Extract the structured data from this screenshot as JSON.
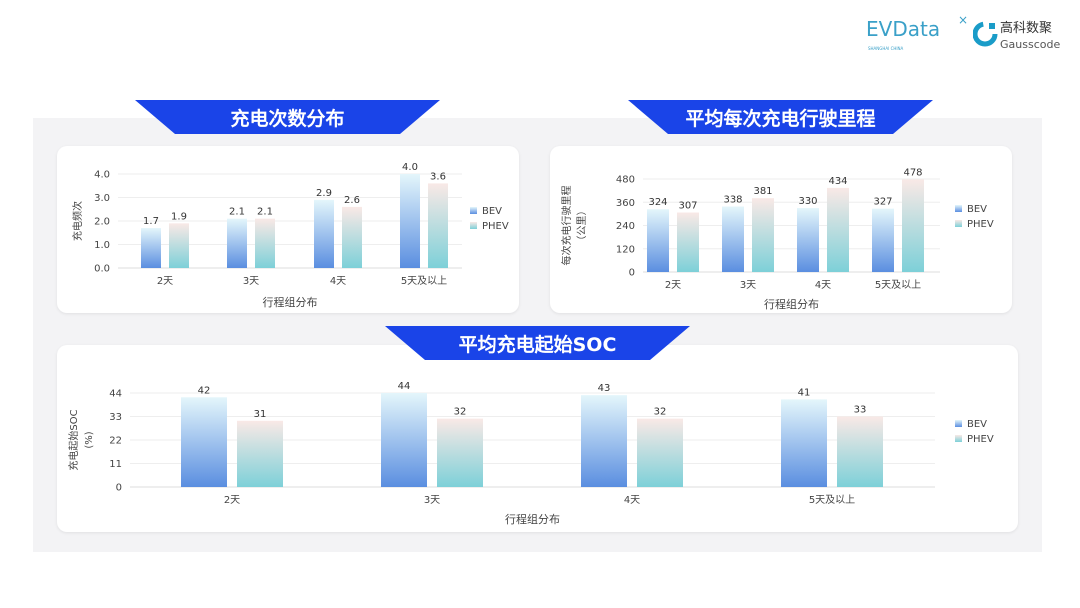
{
  "logos": {
    "evdata": "EVData",
    "evdata_sub": "SHANGHAI CHINA",
    "gauss_cn": "高科数聚",
    "gauss_en": "Gausscode"
  },
  "banners": [
    "充电次数分布",
    "平均每次充电行驶里程",
    "平均充电起始SOC"
  ],
  "colors": {
    "banner": "#1a44e8",
    "bev_top": "#e4f6fb",
    "bev_bottom": "#5a8ee0",
    "phev_top": "#f9e9e6",
    "phev_bottom": "#7dd0d8"
  },
  "chart_data": [
    {
      "type": "bar",
      "title": "充电次数分布",
      "categories": [
        "2天",
        "3天",
        "4天",
        "5天及以上"
      ],
      "xlabel": "行程组分布",
      "ylabel": "充电频次",
      "ylim": [
        0,
        4.0
      ],
      "yticks": [
        "0.0",
        "1.0",
        "2.0",
        "3.0",
        "4.0"
      ],
      "grid": true,
      "legend": "right",
      "series": [
        {
          "name": "BEV",
          "values": [
            1.7,
            2.1,
            2.9,
            4.0
          ],
          "labels": [
            "1.7",
            "2.1",
            "2.9",
            "4.0"
          ]
        },
        {
          "name": "PHEV",
          "values": [
            1.9,
            2.1,
            2.6,
            3.6
          ],
          "labels": [
            "1.9",
            "2.1",
            "2.6",
            "3.6"
          ]
        }
      ]
    },
    {
      "type": "bar",
      "title": "平均每次充电行驶里程",
      "categories": [
        "2天",
        "3天",
        "4天",
        "5天及以上"
      ],
      "xlabel": "行程组分布",
      "ylabel": "每次充电行驶里程",
      "ylabel2": "（公里）",
      "ylim": [
        0,
        480
      ],
      "yticks": [
        "0",
        "120",
        "240",
        "360",
        "480"
      ],
      "grid": true,
      "legend": "right",
      "series": [
        {
          "name": "BEV",
          "values": [
            324,
            338,
            330,
            327
          ],
          "labels": [
            "324",
            "338",
            "330",
            "327"
          ]
        },
        {
          "name": "PHEV",
          "values": [
            307,
            381,
            434,
            478
          ],
          "labels": [
            "307",
            "381",
            "434",
            "478"
          ]
        }
      ]
    },
    {
      "type": "bar",
      "title": "平均充电起始SOC",
      "categories": [
        "2天",
        "3天",
        "4天",
        "5天及以上"
      ],
      "xlabel": "行程组分布",
      "ylabel": "充电起始SOC",
      "ylabel2": "(%)",
      "ylim": [
        0,
        44
      ],
      "yticks": [
        "0",
        "11",
        "22",
        "33",
        "44"
      ],
      "grid": true,
      "legend": "right",
      "series": [
        {
          "name": "BEV",
          "values": [
            42,
            44,
            43,
            41
          ],
          "labels": [
            "42",
            "44",
            "43",
            "41"
          ]
        },
        {
          "name": "PHEV",
          "values": [
            31,
            32,
            32,
            33
          ],
          "labels": [
            "31",
            "32",
            "32",
            "33"
          ]
        }
      ]
    }
  ]
}
